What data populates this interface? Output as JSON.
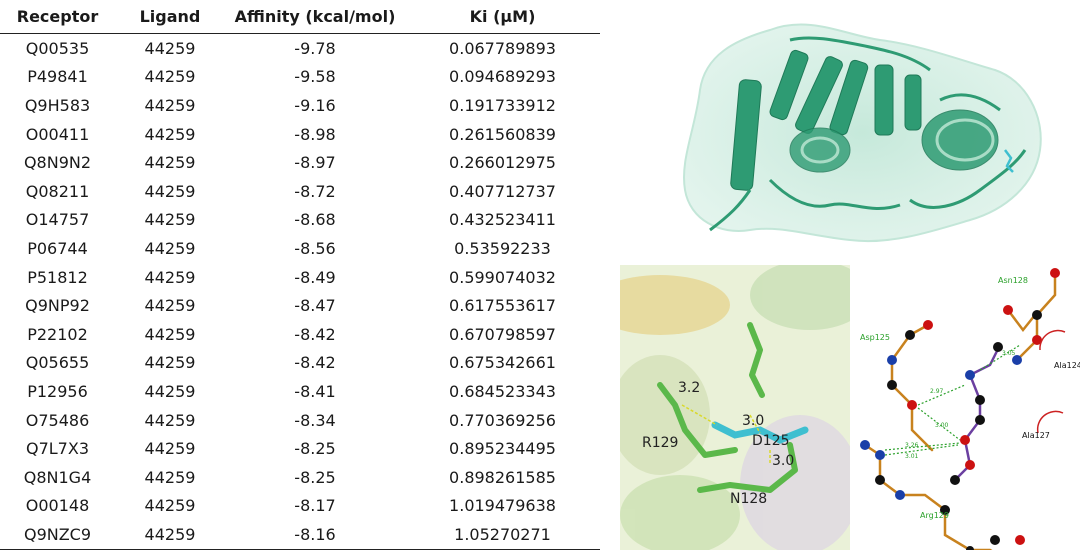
{
  "table": {
    "headers": [
      "Receptor",
      "Ligand",
      "Affinity (kcal/mol)",
      "Ki (μM)"
    ],
    "rows": [
      [
        "Q00535",
        "44259",
        "-9.78",
        "0.067789893"
      ],
      [
        "P49841",
        "44259",
        "-9.58",
        "0.094689293"
      ],
      [
        "Q9H583",
        "44259",
        "-9.16",
        "0.191733912"
      ],
      [
        "O00411",
        "44259",
        "-8.98",
        "0.261560839"
      ],
      [
        "Q8N9N2",
        "44259",
        "-8.97",
        "0.266012975"
      ],
      [
        "Q08211",
        "44259",
        "-8.72",
        "0.407712737"
      ],
      [
        "O14757",
        "44259",
        "-8.68",
        "0.432523411"
      ],
      [
        "P06744",
        "44259",
        "-8.56",
        "0.53592233"
      ],
      [
        "P51812",
        "44259",
        "-8.49",
        "0.599074032"
      ],
      [
        "Q9NP92",
        "44259",
        "-8.47",
        "0.617553617"
      ],
      [
        "P22102",
        "44259",
        "-8.42",
        "0.670798597"
      ],
      [
        "Q05655",
        "44259",
        "-8.42",
        "0.675342661"
      ],
      [
        "P12956",
        "44259",
        "-8.41",
        "0.684523343"
      ],
      [
        "O75486",
        "44259",
        "-8.34",
        "0.770369256"
      ],
      [
        "Q7L7X3",
        "44259",
        "-8.25",
        "0.895234495"
      ],
      [
        "Q8N1G4",
        "44259",
        "-8.25",
        "0.898261585"
      ],
      [
        "O00148",
        "44259",
        "-8.17",
        "1.019479638"
      ],
      [
        "Q9NZC9",
        "44259",
        "-8.16",
        "1.05270271"
      ]
    ]
  },
  "binding_view": {
    "residues": [
      "D125",
      "R129",
      "N128"
    ],
    "hbonds": [
      "3.2",
      "3.0",
      "3.0"
    ]
  },
  "ligplot": {
    "residues": [
      "Asn128",
      "Asp125",
      "Ala124",
      "Ala127",
      "Arg129"
    ],
    "distances": [
      "3.05",
      "2.97",
      "3.00",
      "3.26",
      "3.01"
    ]
  },
  "colors": {
    "protein": "#2e9b73",
    "ligand": "#3fbfd0",
    "residue": "#5bb84a",
    "bond_orange": "#c8821e",
    "bond_purple": "#6b3fa0",
    "hbond": "#2aa02a",
    "hydrophobic": "#cc2222"
  }
}
